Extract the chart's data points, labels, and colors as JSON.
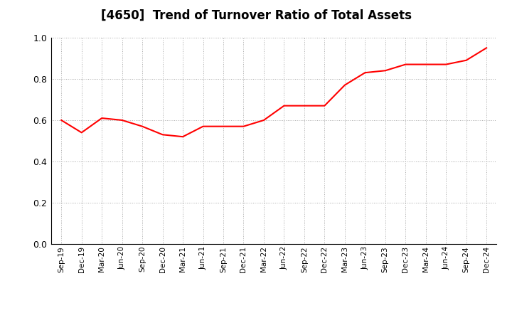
{
  "title": "[4650]  Trend of Turnover Ratio of Total Assets",
  "title_fontsize": 12,
  "line_color": "#FF0000",
  "line_width": 1.5,
  "background_color": "#FFFFFF",
  "grid_color": "#AAAAAA",
  "ylim": [
    0.0,
    1.0
  ],
  "yticks": [
    0.0,
    0.2,
    0.4,
    0.6,
    0.8,
    1.0
  ],
  "x_labels": [
    "Sep-19",
    "Dec-19",
    "Mar-20",
    "Jun-20",
    "Sep-20",
    "Dec-20",
    "Mar-21",
    "Jun-21",
    "Sep-21",
    "Dec-21",
    "Mar-22",
    "Jun-22",
    "Sep-22",
    "Dec-22",
    "Mar-23",
    "Jun-23",
    "Sep-23",
    "Dec-23",
    "Mar-24",
    "Jun-24",
    "Sep-24",
    "Dec-24"
  ],
  "values": [
    0.6,
    0.54,
    0.61,
    0.6,
    0.57,
    0.53,
    0.52,
    0.57,
    0.57,
    0.57,
    0.6,
    0.67,
    0.67,
    0.67,
    0.77,
    0.83,
    0.84,
    0.87,
    0.87,
    0.87,
    0.89,
    0.95
  ]
}
